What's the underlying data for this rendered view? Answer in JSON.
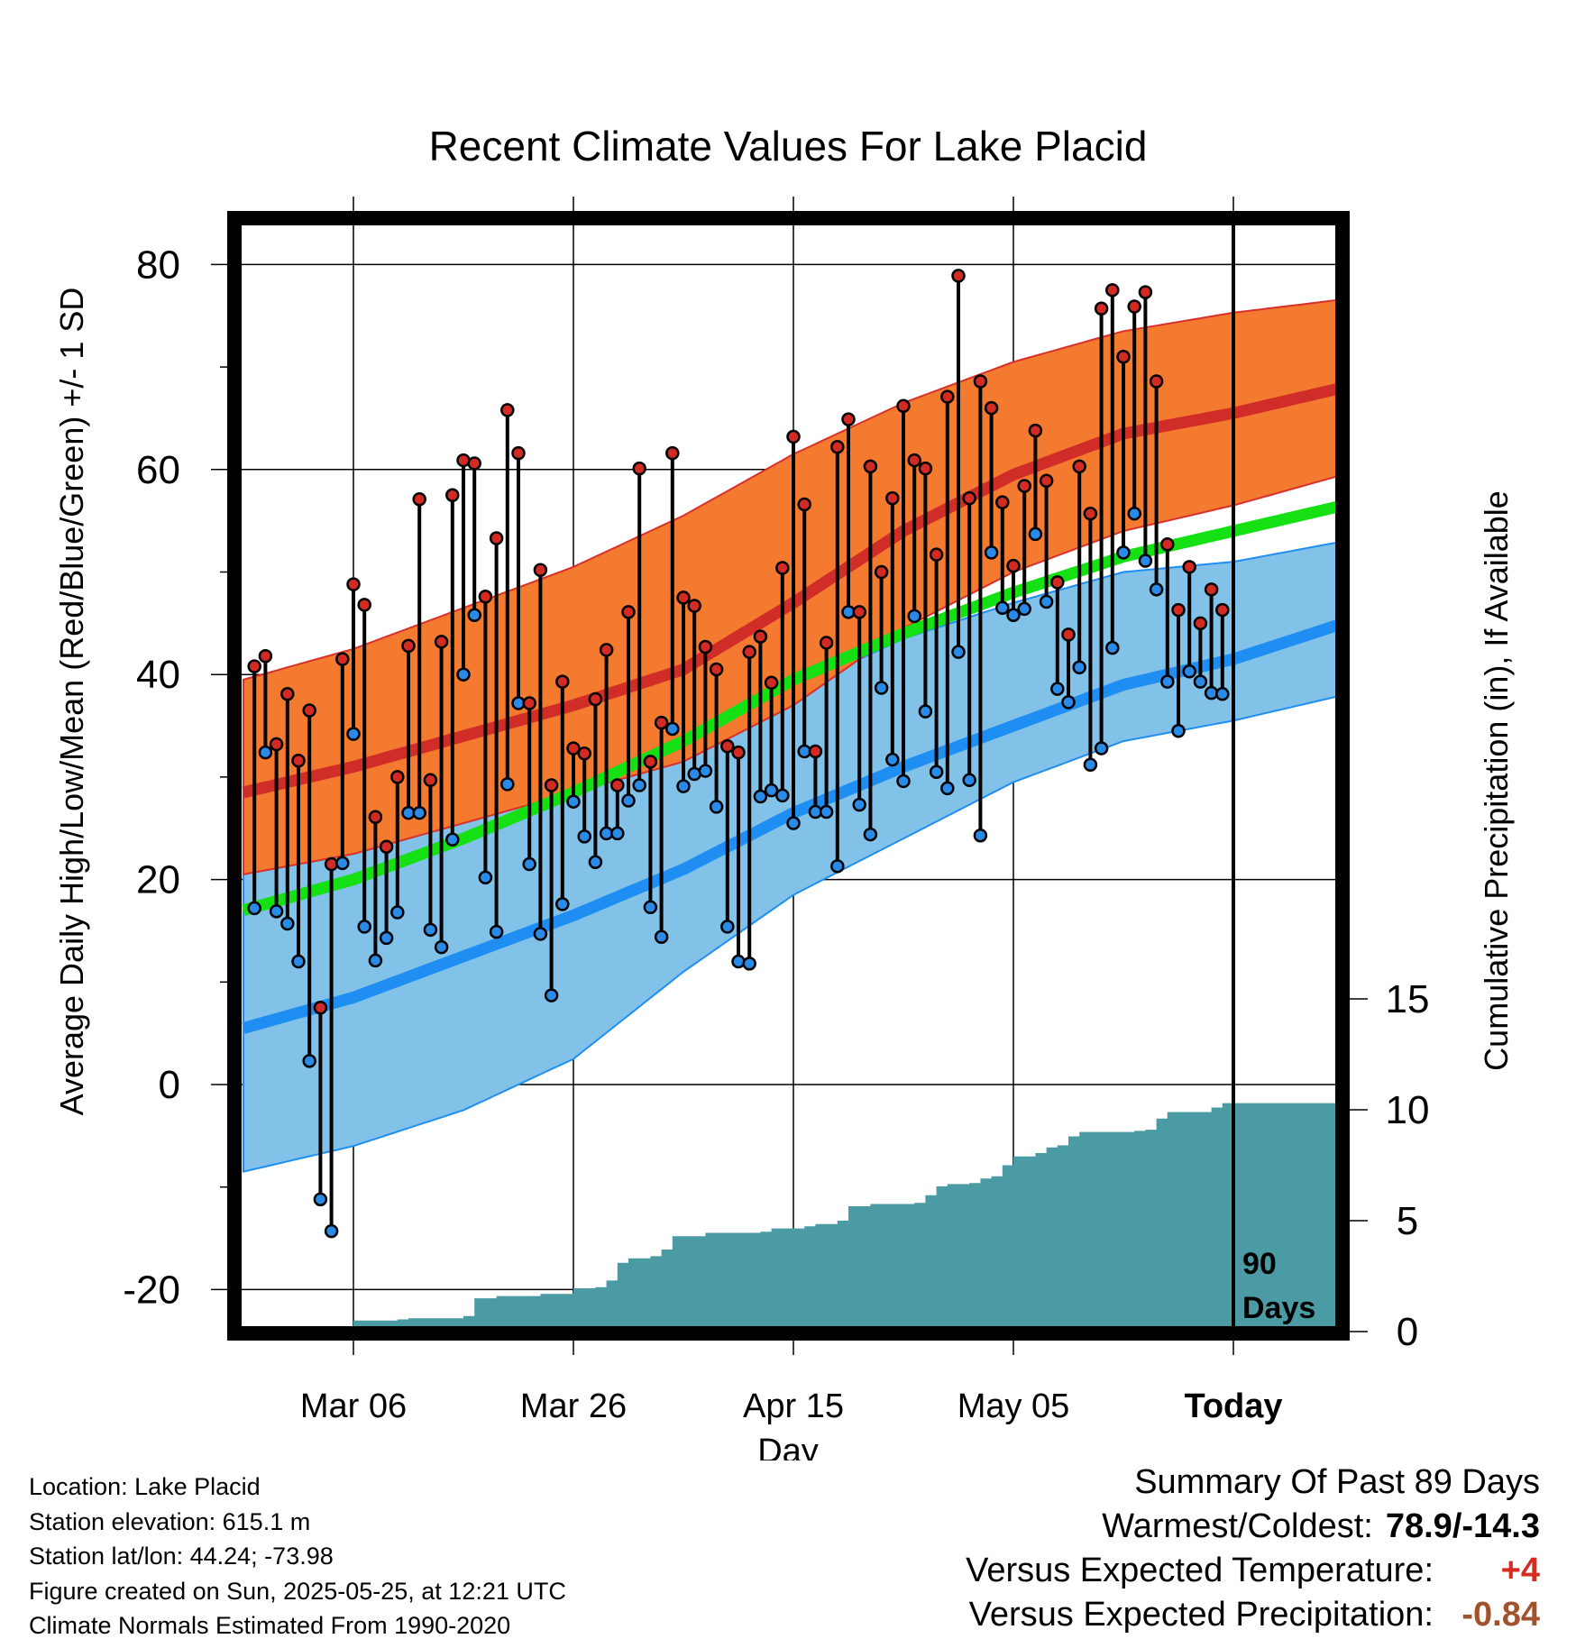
{
  "chart_data": {
    "type": "line",
    "title": "Recent Climate Values For Lake Placid",
    "xlabel": "Day",
    "ylabel_left": "Average Daily High/Low/Mean (Red/Blue/Green) +/- 1 SD",
    "ylabel_right": "Cumulative Precipitation (in), If Available",
    "xlim_days": [
      -90,
      10
    ],
    "ylim_left": [
      -24,
      84
    ],
    "yticks_left": [
      -20,
      0,
      20,
      40,
      60,
      80
    ],
    "ylim_right": [
      0,
      30
    ],
    "yticks_right": [
      0,
      5,
      10,
      15
    ],
    "xticks": [
      {
        "day": -80,
        "label": "Mar 06"
      },
      {
        "day": -60,
        "label": "Mar 26"
      },
      {
        "day": -40,
        "label": "Apr 15"
      },
      {
        "day": -20,
        "label": "May 05"
      },
      {
        "day": 0,
        "label": "Today"
      }
    ],
    "today_marker_label": [
      "90",
      "Days"
    ],
    "normals": {
      "days": [
        -90,
        -80,
        -70,
        -60,
        -50,
        -40,
        -30,
        -20,
        -10,
        0,
        10
      ],
      "high_mean": [
        28.5,
        31.0,
        34.0,
        37.0,
        40.5,
        47.0,
        54.0,
        59.5,
        63.5,
        65.5,
        68.0
      ],
      "high_sd_upper": [
        39.5,
        42.5,
        46.5,
        50.5,
        55.5,
        61.5,
        66.5,
        70.5,
        73.5,
        75.3,
        76.6
      ],
      "high_sd_lower": [
        20.5,
        22.5,
        25.5,
        28.5,
        31.5,
        37.0,
        44.5,
        50.0,
        54.0,
        56.5,
        59.5
      ],
      "low_mean": [
        5.5,
        8.5,
        12.5,
        16.5,
        21.0,
        26.5,
        31.0,
        35.0,
        39.0,
        41.5,
        45.0
      ],
      "low_sd_upper": [
        20.5,
        23.0,
        26.5,
        29.5,
        33.0,
        38.5,
        43.5,
        47.0,
        50.0,
        51.0,
        53.0
      ],
      "low_sd_lower": [
        -8.5,
        -6.0,
        -2.5,
        2.5,
        11.0,
        18.5,
        24.0,
        29.5,
        33.5,
        35.5,
        38.0
      ],
      "mean": [
        17.0,
        20.0,
        24.0,
        28.5,
        33.5,
        39.5,
        44.0,
        48.0,
        51.5,
        54.0,
        56.5
      ]
    },
    "daily": [
      {
        "day": -89,
        "high": 40.8,
        "low": 17.2
      },
      {
        "day": -88,
        "high": 41.8,
        "low": 32.4
      },
      {
        "day": -87,
        "high": 33.2,
        "low": 16.9
      },
      {
        "day": -86,
        "high": 38.1,
        "low": 15.7
      },
      {
        "day": -85,
        "high": 31.6,
        "low": 12.0
      },
      {
        "day": -84,
        "high": 36.5,
        "low": 2.3
      },
      {
        "day": -83,
        "high": 7.5,
        "low": -11.2
      },
      {
        "day": -82,
        "high": 21.5,
        "low": -14.3
      },
      {
        "day": -81,
        "high": 41.5,
        "low": 21.6
      },
      {
        "day": -80,
        "high": 48.8,
        "low": 34.2
      },
      {
        "day": -79,
        "high": 46.8,
        "low": 15.4
      },
      {
        "day": -78,
        "high": 26.1,
        "low": 12.1
      },
      {
        "day": -77,
        "high": 23.2,
        "low": 14.3
      },
      {
        "day": -76,
        "high": 30.0,
        "low": 16.8
      },
      {
        "day": -75,
        "high": 42.8,
        "low": 26.5
      },
      {
        "day": -74,
        "high": 57.1,
        "low": 26.5
      },
      {
        "day": -73,
        "high": 29.7,
        "low": 15.1
      },
      {
        "day": -72,
        "high": 43.2,
        "low": 13.4
      },
      {
        "day": -71,
        "high": 57.5,
        "low": 23.9
      },
      {
        "day": -70,
        "high": 60.9,
        "low": 40.0
      },
      {
        "day": -69,
        "high": 60.6,
        "low": 45.8
      },
      {
        "day": -68,
        "high": 47.6,
        "low": 20.2
      },
      {
        "day": -67,
        "high": 53.3,
        "low": 14.9
      },
      {
        "day": -66,
        "high": 65.8,
        "low": 29.3
      },
      {
        "day": -65,
        "high": 61.6,
        "low": 37.2
      },
      {
        "day": -64,
        "high": 37.2,
        "low": 21.5
      },
      {
        "day": -63,
        "high": 50.2,
        "low": 14.7
      },
      {
        "day": -62,
        "high": 29.2,
        "low": 8.7
      },
      {
        "day": -61,
        "high": 39.3,
        "low": 17.6
      },
      {
        "day": -60,
        "high": 32.8,
        "low": 27.6
      },
      {
        "day": -59,
        "high": 32.3,
        "low": 24.2
      },
      {
        "day": -58,
        "high": 37.6,
        "low": 21.7
      },
      {
        "day": -57,
        "high": 42.4,
        "low": 24.5
      },
      {
        "day": -56,
        "high": 29.2,
        "low": 24.5
      },
      {
        "day": -55,
        "high": 46.1,
        "low": 27.7
      },
      {
        "day": -54,
        "high": 60.1,
        "low": 29.2
      },
      {
        "day": -53,
        "high": 31.5,
        "low": 17.3
      },
      {
        "day": -52,
        "high": 35.3,
        "low": 14.4
      },
      {
        "day": -51,
        "high": 61.6,
        "low": 34.7
      },
      {
        "day": -50,
        "high": 47.5,
        "low": 29.1
      },
      {
        "day": -49,
        "high": 46.7,
        "low": 30.3
      },
      {
        "day": -48,
        "high": 42.7,
        "low": 30.6
      },
      {
        "day": -47,
        "high": 40.5,
        "low": 27.1
      },
      {
        "day": -46,
        "high": 33.0,
        "low": 15.4
      },
      {
        "day": -45,
        "high": 32.4,
        "low": 12.0
      },
      {
        "day": -44,
        "high": 42.2,
        "low": 11.8
      },
      {
        "day": -43,
        "high": 43.7,
        "low": 28.1
      },
      {
        "day": -42,
        "high": 39.2,
        "low": 28.7
      },
      {
        "day": -41,
        "high": 50.4,
        "low": 28.2
      },
      {
        "day": -40,
        "high": 63.2,
        "low": 25.5
      },
      {
        "day": -39,
        "high": 56.6,
        "low": 32.5
      },
      {
        "day": -38,
        "high": 32.5,
        "low": 26.6
      },
      {
        "day": -37,
        "high": 43.1,
        "low": 26.6
      },
      {
        "day": -36,
        "high": 62.2,
        "low": 21.3
      },
      {
        "day": -35,
        "high": 64.9,
        "low": 46.1
      },
      {
        "day": -34,
        "high": 46.1,
        "low": 27.3
      },
      {
        "day": -33,
        "high": 60.3,
        "low": 24.4
      },
      {
        "day": -32,
        "high": 50.0,
        "low": 38.7
      },
      {
        "day": -31,
        "high": 57.2,
        "low": 31.7
      },
      {
        "day": -30,
        "high": 66.2,
        "low": 29.6
      },
      {
        "day": -29,
        "high": 60.9,
        "low": 45.7
      },
      {
        "day": -28,
        "high": 60.1,
        "low": 36.4
      },
      {
        "day": -27,
        "high": 51.7,
        "low": 30.5
      },
      {
        "day": -26,
        "high": 67.1,
        "low": 28.9
      },
      {
        "day": -25,
        "high": 78.9,
        "low": 42.2
      },
      {
        "day": -24,
        "high": 57.2,
        "low": 29.7
      },
      {
        "day": -23,
        "high": 68.6,
        "low": 24.3
      },
      {
        "day": -22,
        "high": 66.0,
        "low": 51.9
      },
      {
        "day": -21,
        "high": 56.8,
        "low": 46.5
      },
      {
        "day": -20,
        "high": 50.6,
        "low": 45.8
      },
      {
        "day": -19,
        "high": 58.4,
        "low": 46.4
      },
      {
        "day": -18,
        "high": 63.8,
        "low": 53.7
      },
      {
        "day": -17,
        "high": 58.9,
        "low": 47.1
      },
      {
        "day": -16,
        "high": 49.0,
        "low": 38.6
      },
      {
        "day": -15,
        "high": 43.9,
        "low": 37.3
      },
      {
        "day": -14,
        "high": 60.3,
        "low": 40.7
      },
      {
        "day": -13,
        "high": 55.7,
        "low": 31.2
      },
      {
        "day": -12,
        "high": 75.7,
        "low": 32.8
      },
      {
        "day": -11,
        "high": 77.5,
        "low": 42.6
      },
      {
        "day": -10,
        "high": 71.0,
        "low": 51.9
      },
      {
        "day": -9,
        "high": 75.9,
        "low": 55.7
      },
      {
        "day": -8,
        "high": 77.3,
        "low": 51.1
      },
      {
        "day": -7,
        "high": 68.6,
        "low": 48.3
      },
      {
        "day": -6,
        "high": 52.7,
        "low": 39.3
      },
      {
        "day": -5,
        "high": 46.3,
        "low": 34.5
      },
      {
        "day": -4,
        "high": 50.5,
        "low": 40.3
      },
      {
        "day": -3,
        "high": 45.0,
        "low": 39.3
      },
      {
        "day": -2,
        "high": 48.3,
        "low": 38.2
      },
      {
        "day": -1,
        "high": 46.3,
        "low": 38.1
      }
    ],
    "precip_cumulative": [
      {
        "day": -90,
        "value": 0.0
      },
      {
        "day": -82,
        "value": 0.0
      },
      {
        "day": -80,
        "value": 0.5
      },
      {
        "day": -76,
        "value": 0.55
      },
      {
        "day": -75,
        "value": 0.6
      },
      {
        "day": -71,
        "value": 0.6
      },
      {
        "day": -70,
        "value": 0.7
      },
      {
        "day": -69,
        "value": 1.5
      },
      {
        "day": -67,
        "value": 1.6
      },
      {
        "day": -63,
        "value": 1.7
      },
      {
        "day": -60,
        "value": 1.95
      },
      {
        "day": -58,
        "value": 2.0
      },
      {
        "day": -57,
        "value": 2.3
      },
      {
        "day": -56,
        "value": 3.1
      },
      {
        "day": -55,
        "value": 3.3
      },
      {
        "day": -53,
        "value": 3.4
      },
      {
        "day": -52,
        "value": 3.7
      },
      {
        "day": -51,
        "value": 4.3
      },
      {
        "day": -48,
        "value": 4.45
      },
      {
        "day": -43,
        "value": 4.5
      },
      {
        "day": -42,
        "value": 4.65
      },
      {
        "day": -39,
        "value": 4.75
      },
      {
        "day": -38,
        "value": 4.85
      },
      {
        "day": -36,
        "value": 5.0
      },
      {
        "day": -35,
        "value": 5.65
      },
      {
        "day": -33,
        "value": 5.75
      },
      {
        "day": -29,
        "value": 5.8
      },
      {
        "day": -28,
        "value": 6.15
      },
      {
        "day": -27,
        "value": 6.55
      },
      {
        "day": -26,
        "value": 6.65
      },
      {
        "day": -24,
        "value": 6.7
      },
      {
        "day": -23,
        "value": 6.9
      },
      {
        "day": -22,
        "value": 7.0
      },
      {
        "day": -21,
        "value": 7.5
      },
      {
        "day": -20,
        "value": 7.9
      },
      {
        "day": -18,
        "value": 8.05
      },
      {
        "day": -17,
        "value": 8.3
      },
      {
        "day": -16,
        "value": 8.4
      },
      {
        "day": -15,
        "value": 8.8
      },
      {
        "day": -14,
        "value": 9.0
      },
      {
        "day": -9,
        "value": 9.05
      },
      {
        "day": -8,
        "value": 9.1
      },
      {
        "day": -7,
        "value": 9.6
      },
      {
        "day": -6,
        "value": 9.9
      },
      {
        "day": -3,
        "value": 9.9
      },
      {
        "day": -2,
        "value": 10.1
      },
      {
        "day": -1,
        "value": 10.3
      },
      {
        "day": 10,
        "value": 10.3
      }
    ]
  },
  "footer": {
    "location": "Location: Lake Placid",
    "elevation": "Station elevation: 615.1 m",
    "latlon": "Station lat/lon: 44.24; -73.98",
    "created": "Figure created on Sun, 2025-05-25, at 12:21 UTC",
    "normals": "Climate Normals Estimated From 1990-2020"
  },
  "summary": {
    "heading": "Summary Of Past 89 Days",
    "warmest_coldest_label": "Warmest/Coldest:",
    "warmest_coldest_value": "78.9/-14.3",
    "temp_label": "Versus Expected Temperature:",
    "temp_value": "+4",
    "precip_label": "Versus Expected Precipitation:",
    "precip_value": "-0.84"
  },
  "colors": {
    "high_band": "#f47a30",
    "high_mean": "#d02c28",
    "low_band": "#82c1e8",
    "low_mean": "#1e8ef2",
    "mean": "#14e014",
    "precip": "#4a9ba4",
    "high_dot": "#d42a24",
    "low_dot": "#2a8ae8",
    "temp_delta": "#d62a22",
    "precip_delta": "#a0522d"
  }
}
